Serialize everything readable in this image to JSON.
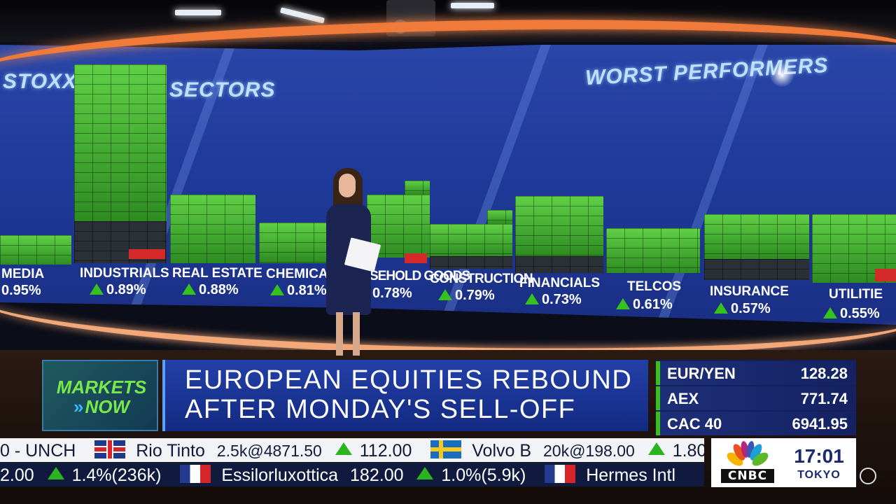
{
  "wall": {
    "left_title": "STOXX",
    "sectors_title": "SECTORS",
    "right_title": "WORST PERFORMERS",
    "sectors": [
      {
        "name": "MEDIA",
        "change": "0.95%"
      },
      {
        "name": "INDUSTRIALS",
        "change": "0.89%"
      },
      {
        "name": "REAL ESTATE",
        "change": "0.88%"
      },
      {
        "name": "CHEMICAL",
        "change": "0.81%"
      },
      {
        "name": "SEHOLD GOODS",
        "change": "0.78%"
      },
      {
        "name": "CONSTRUCTION",
        "change": "0.79%"
      },
      {
        "name": "FINANCIALS",
        "change": "0.73%"
      },
      {
        "name": "TELCOS",
        "change": "0.61%"
      },
      {
        "name": "INSURANCE",
        "change": "0.57%"
      },
      {
        "name": "UTILITIE",
        "change": "0.55%"
      }
    ]
  },
  "lower_third": {
    "logo_line1": "MARKETS",
    "logo_line2": "NOW",
    "headline_line1": "EUROPEAN EQUITIES REBOUND",
    "headline_line2": "AFTER MONDAY'S SELL-OFF"
  },
  "quotes": [
    {
      "name": "EUR/YEN",
      "value": "128.28"
    },
    {
      "name": "AEX",
      "value": "771.74"
    },
    {
      "name": "CAC 40",
      "value": "6941.95"
    }
  ],
  "ticker_top": {
    "lead": "0 - UNCH",
    "item1_name": "Rio Tinto",
    "item1_trade": "2.5k@4871.50",
    "item1_change": "112.00",
    "item2_name": "Volvo B",
    "item2_trade": "20k@198.00",
    "item2_change": "1.80"
  },
  "ticker_bottom": {
    "lead": "2.00",
    "lead_change": "1.4%(236k)",
    "item1_name": "Essilorluxottica",
    "item1_price": "182.00",
    "item1_change": "1.0%(5.9k)",
    "item2_name": "Hermes Intl"
  },
  "branding": {
    "network": "CNBC",
    "time": "17:01",
    "city": "TOKYO"
  },
  "colors": {
    "accent_green": "#35c21c",
    "headline_blue": "#2340a8",
    "brand_orange": "#f07a3a"
  }
}
